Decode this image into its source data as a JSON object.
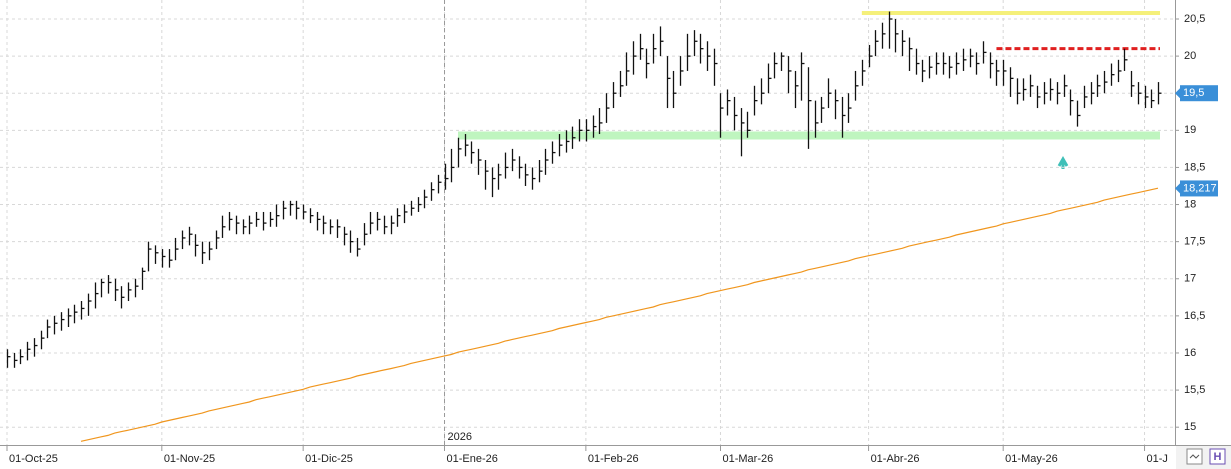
{
  "chart_data": {
    "type": "ohlc",
    "categories": [
      "01-Oct-25",
      null,
      null,
      null,
      null,
      null,
      null,
      null,
      null,
      null,
      null,
      null,
      null,
      null,
      null,
      null,
      null,
      null,
      null,
      null,
      null,
      null,
      null,
      "01-Nov-25",
      null,
      null,
      null,
      null,
      null,
      null,
      null,
      null,
      null,
      null,
      null,
      null,
      null,
      null,
      null,
      null,
      null,
      null,
      null,
      null,
      "01-Dic-25",
      null,
      null,
      null,
      null,
      null,
      null,
      null,
      null,
      null,
      null,
      null,
      null,
      null,
      null,
      null,
      null,
      null,
      null,
      null,
      null,
      "01-Ene-26",
      null,
      null,
      null,
      null,
      null,
      null,
      null,
      null,
      null,
      null,
      null,
      null,
      null,
      null,
      null,
      null,
      null,
      null,
      null,
      null,
      "01-Feb-26",
      null,
      null,
      null,
      null,
      null,
      null,
      null,
      null,
      null,
      null,
      null,
      null,
      null,
      null,
      null,
      null,
      null,
      null,
      null,
      "01-Mar-26",
      null,
      null,
      null,
      null,
      null,
      null,
      null,
      null,
      null,
      null,
      null,
      null,
      null,
      null,
      null,
      null,
      null,
      null,
      null,
      null,
      null,
      "01-Abr-26",
      null,
      null,
      null,
      null,
      null,
      null,
      null,
      null,
      null,
      null,
      null,
      null,
      null,
      null,
      null,
      null,
      null,
      null,
      null,
      "01-May-26",
      null,
      null,
      null,
      null,
      null,
      null,
      null,
      null,
      null,
      null,
      null,
      null,
      null,
      null,
      null,
      null,
      null,
      null,
      null,
      null,
      "01-J",
      null,
      null
    ],
    "high": [
      16.05,
      16.0,
      16.05,
      16.15,
      16.2,
      16.3,
      16.45,
      16.5,
      16.55,
      16.6,
      16.65,
      16.7,
      16.8,
      16.95,
      17.0,
      17.05,
      17.0,
      16.9,
      16.95,
      17.0,
      17.15,
      17.5,
      17.45,
      17.4,
      17.4,
      17.55,
      17.65,
      17.7,
      17.6,
      17.5,
      17.5,
      17.65,
      17.85,
      17.9,
      17.85,
      17.8,
      17.85,
      17.9,
      17.9,
      17.9,
      18.0,
      18.05,
      18.05,
      18.05,
      18.0,
      17.95,
      17.9,
      17.85,
      17.8,
      17.8,
      17.7,
      17.65,
      17.55,
      17.75,
      17.9,
      17.9,
      17.85,
      17.85,
      17.95,
      18.0,
      18.05,
      18.1,
      18.2,
      18.3,
      18.4,
      18.55,
      18.75,
      18.9,
      18.95,
      18.85,
      18.75,
      18.6,
      18.5,
      18.55,
      18.7,
      18.75,
      18.65,
      18.55,
      18.5,
      18.6,
      18.75,
      18.85,
      18.95,
      19.0,
      19.05,
      19.15,
      19.15,
      19.2,
      19.3,
      19.5,
      19.65,
      19.8,
      20.05,
      20.2,
      20.3,
      20.1,
      20.3,
      20.4,
      20.0,
      19.8,
      20.0,
      20.3,
      20.35,
      20.3,
      20.2,
      20.1,
      19.5,
      19.55,
      19.45,
      19.3,
      19.25,
      19.6,
      19.7,
      19.9,
      20.05,
      20.05,
      20.0,
      19.8,
      20.05,
      19.85,
      19.4,
      19.45,
      19.7,
      19.55,
      19.45,
      19.5,
      19.8,
      19.95,
      20.15,
      20.35,
      20.45,
      20.6,
      20.5,
      20.35,
      20.25,
      20.1,
      19.95,
      20.0,
      20.05,
      20.05,
      20.0,
      20.05,
      20.1,
      20.1,
      20.05,
      20.2,
      20.05,
      19.95,
      19.95,
      19.85,
      19.7,
      19.7,
      19.75,
      19.6,
      19.65,
      19.7,
      19.65,
      19.75,
      19.55,
      19.4,
      19.6,
      19.65,
      19.75,
      19.8,
      19.9,
      19.95,
      20.1,
      19.8,
      19.65,
      19.6,
      19.55,
      19.65
    ],
    "low": [
      15.8,
      15.8,
      15.85,
      15.9,
      15.95,
      16.05,
      16.2,
      16.25,
      16.3,
      16.35,
      16.4,
      16.45,
      16.5,
      16.6,
      16.75,
      16.8,
      16.7,
      16.6,
      16.7,
      16.75,
      16.85,
      17.1,
      17.2,
      17.15,
      17.15,
      17.25,
      17.4,
      17.45,
      17.3,
      17.2,
      17.25,
      17.4,
      17.55,
      17.65,
      17.6,
      17.6,
      17.6,
      17.7,
      17.65,
      17.7,
      17.7,
      17.8,
      17.85,
      17.8,
      17.8,
      17.75,
      17.65,
      17.6,
      17.6,
      17.55,
      17.45,
      17.35,
      17.3,
      17.45,
      17.6,
      17.65,
      17.6,
      17.6,
      17.7,
      17.75,
      17.85,
      17.9,
      17.95,
      18.05,
      18.15,
      18.2,
      18.3,
      18.5,
      18.65,
      18.55,
      18.4,
      18.2,
      18.1,
      18.2,
      18.35,
      18.45,
      18.35,
      18.25,
      18.2,
      18.3,
      18.4,
      18.55,
      18.65,
      18.7,
      18.75,
      18.85,
      18.85,
      18.9,
      18.95,
      19.1,
      19.3,
      19.45,
      19.6,
      19.75,
      19.95,
      19.7,
      19.9,
      20.0,
      19.3,
      19.3,
      19.6,
      19.8,
      20.0,
      19.9,
      19.8,
      19.6,
      18.9,
      19.2,
      19.0,
      18.65,
      18.9,
      19.2,
      19.35,
      19.5,
      19.7,
      19.8,
      19.5,
      19.3,
      19.4,
      18.75,
      18.9,
      19.1,
      19.3,
      19.15,
      18.9,
      19.1,
      19.4,
      19.6,
      19.85,
      20.0,
      20.1,
      20.1,
      20.05,
      20.0,
      19.8,
      19.75,
      19.65,
      19.7,
      19.75,
      19.75,
      19.7,
      19.75,
      19.8,
      19.85,
      19.75,
      19.9,
      19.7,
      19.6,
      19.6,
      19.45,
      19.35,
      19.4,
      19.45,
      19.3,
      19.35,
      19.4,
      19.35,
      19.45,
      19.2,
      19.05,
      19.3,
      19.35,
      19.45,
      19.5,
      19.6,
      19.65,
      19.8,
      19.45,
      19.35,
      19.3,
      19.3,
      19.35
    ],
    "close": [
      15.95,
      15.9,
      15.95,
      16.05,
      16.1,
      16.2,
      16.35,
      16.4,
      16.45,
      16.5,
      16.55,
      16.6,
      16.7,
      16.8,
      16.95,
      16.95,
      16.85,
      16.75,
      16.85,
      16.9,
      17.1,
      17.4,
      17.35,
      17.3,
      17.25,
      17.4,
      17.55,
      17.6,
      17.45,
      17.35,
      17.4,
      17.55,
      17.7,
      17.8,
      17.75,
      17.7,
      17.75,
      17.8,
      17.75,
      17.8,
      17.85,
      17.95,
      18.0,
      17.95,
      17.9,
      17.85,
      17.8,
      17.75,
      17.7,
      17.7,
      17.6,
      17.5,
      17.4,
      17.6,
      17.75,
      17.8,
      17.7,
      17.75,
      17.85,
      17.9,
      17.95,
      18.0,
      18.1,
      18.2,
      18.3,
      18.35,
      18.5,
      18.75,
      18.8,
      18.7,
      18.6,
      18.45,
      18.35,
      18.4,
      18.5,
      18.6,
      18.5,
      18.4,
      18.35,
      18.45,
      18.6,
      18.7,
      18.8,
      18.85,
      18.9,
      19.0,
      19.0,
      19.05,
      19.1,
      19.3,
      19.5,
      19.6,
      19.8,
      20.0,
      20.1,
      19.9,
      20.1,
      20.2,
      19.7,
      19.5,
      19.8,
      20.0,
      20.2,
      20.1,
      20.0,
      19.9,
      19.3,
      19.4,
      19.2,
      19.1,
      19.0,
      19.4,
      19.5,
      19.7,
      19.9,
      20.0,
      19.8,
      19.6,
      19.9,
      19.4,
      19.1,
      19.3,
      19.5,
      19.4,
      19.2,
      19.3,
      19.6,
      19.8,
      20.0,
      20.2,
      20.3,
      20.5,
      20.3,
      20.2,
      20.1,
      19.9,
      19.8,
      19.85,
      19.9,
      19.9,
      19.85,
      19.9,
      19.95,
      20.0,
      19.9,
      20.05,
      19.9,
      19.8,
      19.8,
      19.7,
      19.5,
      19.55,
      19.6,
      19.45,
      19.5,
      19.55,
      19.5,
      19.6,
      19.4,
      19.2,
      19.45,
      19.5,
      19.6,
      19.65,
      19.75,
      19.8,
      19.95,
      19.6,
      19.5,
      19.45,
      19.4,
      19.5
    ],
    "bar_color": "#111111",
    "ma": {
      "color": "#f0961e",
      "values": [
        null,
        null,
        null,
        null,
        null,
        null,
        null,
        null,
        null,
        null,
        null,
        14.81,
        14.83,
        14.85,
        14.87,
        14.89,
        14.92,
        14.94,
        14.96,
        14.98,
        15.0,
        15.02,
        15.04,
        15.07,
        15.09,
        15.11,
        15.13,
        15.15,
        15.17,
        15.19,
        15.22,
        15.24,
        15.26,
        15.28,
        15.3,
        15.32,
        15.34,
        15.37,
        15.39,
        15.41,
        15.43,
        15.45,
        15.47,
        15.49,
        15.51,
        15.54,
        15.56,
        15.58,
        15.6,
        15.62,
        15.64,
        15.66,
        15.69,
        15.71,
        15.73,
        15.75,
        15.77,
        15.79,
        15.81,
        15.83,
        15.86,
        15.88,
        15.9,
        15.92,
        15.94,
        15.96,
        15.98,
        16.01,
        16.03,
        16.05,
        16.07,
        16.09,
        16.11,
        16.13,
        16.16,
        16.18,
        16.2,
        16.22,
        16.24,
        16.26,
        16.28,
        16.3,
        16.33,
        16.35,
        16.37,
        16.39,
        16.41,
        16.43,
        16.45,
        16.48,
        16.5,
        16.52,
        16.54,
        16.56,
        16.58,
        16.6,
        16.62,
        16.65,
        16.67,
        16.69,
        16.71,
        16.73,
        16.75,
        16.77,
        16.8,
        16.82,
        16.84,
        16.86,
        16.88,
        16.9,
        16.92,
        16.95,
        16.97,
        16.99,
        17.01,
        17.03,
        17.05,
        17.07,
        17.09,
        17.12,
        17.14,
        17.16,
        17.18,
        17.2,
        17.22,
        17.24,
        17.27,
        17.29,
        17.31,
        17.33,
        17.35,
        17.37,
        17.39,
        17.41,
        17.44,
        17.46,
        17.48,
        17.5,
        17.52,
        17.54,
        17.56,
        17.59,
        17.61,
        17.63,
        17.65,
        17.67,
        17.69,
        17.71,
        17.74,
        17.76,
        17.78,
        17.8,
        17.82,
        17.84,
        17.86,
        17.88,
        17.91,
        17.93,
        17.95,
        17.97,
        17.99,
        18.01,
        18.03,
        18.06,
        18.08,
        18.1,
        18.12,
        18.14,
        18.16,
        18.18,
        18.2,
        18.22
      ]
    },
    "levels": [
      {
        "value": 20.58,
        "from": 127,
        "color": "#f5f07a",
        "dash": false,
        "width": 4
      },
      {
        "value": 20.1,
        "from": 147,
        "color": "#e02020",
        "dash": true,
        "width": 3
      },
      {
        "value": 18.93,
        "from": 67,
        "color": "#bff5bf",
        "dash": false,
        "width": 8
      }
    ],
    "year_marker": {
      "label": "2026",
      "index": 65
    },
    "last_label": {
      "value": 19.5,
      "label": "19,5",
      "color": "#3a8fd8"
    },
    "ma_label": {
      "value": 18.217,
      "label": "18,217",
      "color": "#3a8fd8"
    },
    "ylim": [
      14.76,
      20.756
    ],
    "yticks": [
      15,
      {
        "value": 15.5,
        "label": "15,5"
      },
      16,
      {
        "value": 16.5,
        "label": "16,5"
      },
      17,
      {
        "value": 17.5,
        "label": "17,5"
      },
      18,
      {
        "value": 18.5,
        "label": "18,5"
      },
      19,
      {
        "value": 19.5,
        "label": "19,5"
      },
      20,
      {
        "value": 20.5,
        "label": "20,5"
      }
    ],
    "grid": true
  }
}
